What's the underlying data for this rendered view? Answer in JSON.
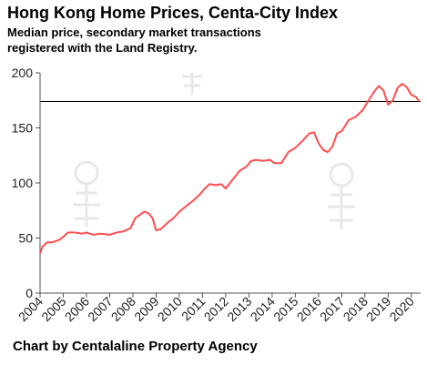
{
  "header": {
    "title": "Hong Kong Home Prices, Centa-City Index",
    "subtitle": "Median price, secondary market transactions registered with the Land Registry."
  },
  "footer": {
    "credit": "Chart by Centalaline Property Agency"
  },
  "colors": {
    "line": "#ff4d4d",
    "reference_line": "#000000",
    "axis": "#555555",
    "watermark": "#e6e6e6"
  },
  "chart_data": {
    "type": "line",
    "title": "Hong Kong Home Prices, Centa-City Index",
    "xlabel": "",
    "ylabel": "",
    "xlim": [
      2004,
      2020.4
    ],
    "ylim": [
      0,
      200
    ],
    "y_ticks": [
      0,
      50,
      100,
      150,
      200
    ],
    "x_ticks": [
      "2004",
      "2005",
      "2006",
      "2007",
      "2008",
      "2009",
      "2010",
      "2011",
      "2012",
      "2013",
      "2014",
      "2015",
      "2016",
      "2017",
      "2018",
      "2019",
      "2020"
    ],
    "grid": false,
    "legend": "none",
    "reference_line": {
      "y": 174
    },
    "series": [
      {
        "x": [
          2004.0,
          2004.1,
          2004.3,
          2004.5,
          2004.8,
          2005.0,
          2005.2,
          2005.5,
          2005.8,
          2006.0,
          2006.3,
          2006.6,
          2007.0,
          2007.3,
          2007.6,
          2007.9,
          2008.1,
          2008.3,
          2008.5,
          2008.7,
          2008.85,
          2009.0,
          2009.2,
          2009.5,
          2009.8,
          2010.0,
          2010.3,
          2010.6,
          2010.9,
          2011.1,
          2011.3,
          2011.6,
          2011.8,
          2012.0,
          2012.3,
          2012.6,
          2012.9,
          2013.1,
          2013.3,
          2013.6,
          2013.9,
          2014.1,
          2014.4,
          2014.7,
          2015.0,
          2015.3,
          2015.6,
          2015.8,
          2016.0,
          2016.2,
          2016.4,
          2016.6,
          2016.8,
          2017.0,
          2017.3,
          2017.6,
          2017.9,
          2018.1,
          2018.4,
          2018.6,
          2018.8,
          2019.0,
          2019.2,
          2019.4,
          2019.6,
          2019.8,
          2020.0,
          2020.2,
          2020.35
        ],
        "values": [
          36,
          42,
          46,
          46,
          48,
          51,
          55,
          55,
          54,
          55,
          53,
          54,
          53,
          55,
          56,
          59,
          68,
          71,
          74,
          72,
          68,
          57,
          58,
          64,
          69,
          74,
          79,
          84,
          90,
          95,
          99,
          98,
          99,
          95,
          103,
          111,
          115,
          120,
          121,
          120,
          121,
          118,
          118,
          128,
          132,
          138,
          145,
          146,
          136,
          130,
          128,
          133,
          145,
          147,
          157,
          160,
          166,
          173,
          183,
          188,
          184,
          171,
          175,
          186,
          190,
          187,
          180,
          178,
          174
        ]
      }
    ]
  }
}
